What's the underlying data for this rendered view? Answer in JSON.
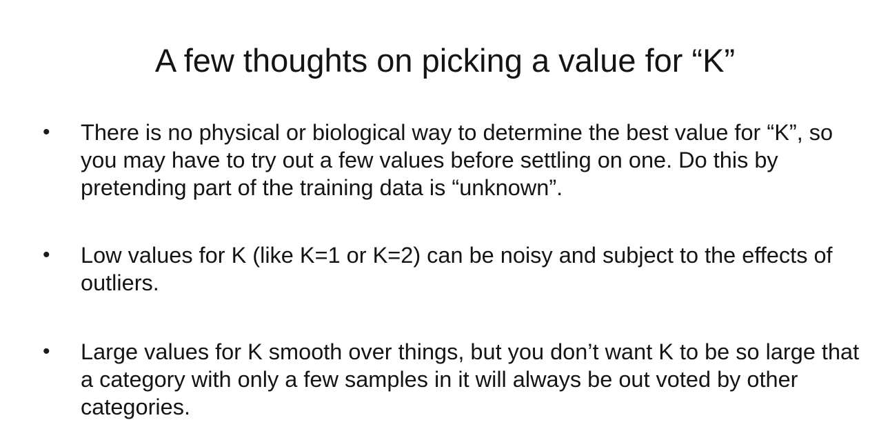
{
  "slide": {
    "title": "A few thoughts on picking a value for “K”",
    "bullet_glyph": "•",
    "bullets": [
      {
        "text": "There is no physical or biological way to determine the best value for “K”, so you may have to try out a few values before settling on one. Do this by pretending part of the training data is “unknown”."
      },
      {
        "text": "Low values for K (like K=1 or K=2) can be noisy and subject to the effects of outliers."
      },
      {
        "text": "Large values for K smooth over things, but you don’t want K to be so large that a category with only a few samples in it will always be out voted by other categories."
      }
    ]
  }
}
